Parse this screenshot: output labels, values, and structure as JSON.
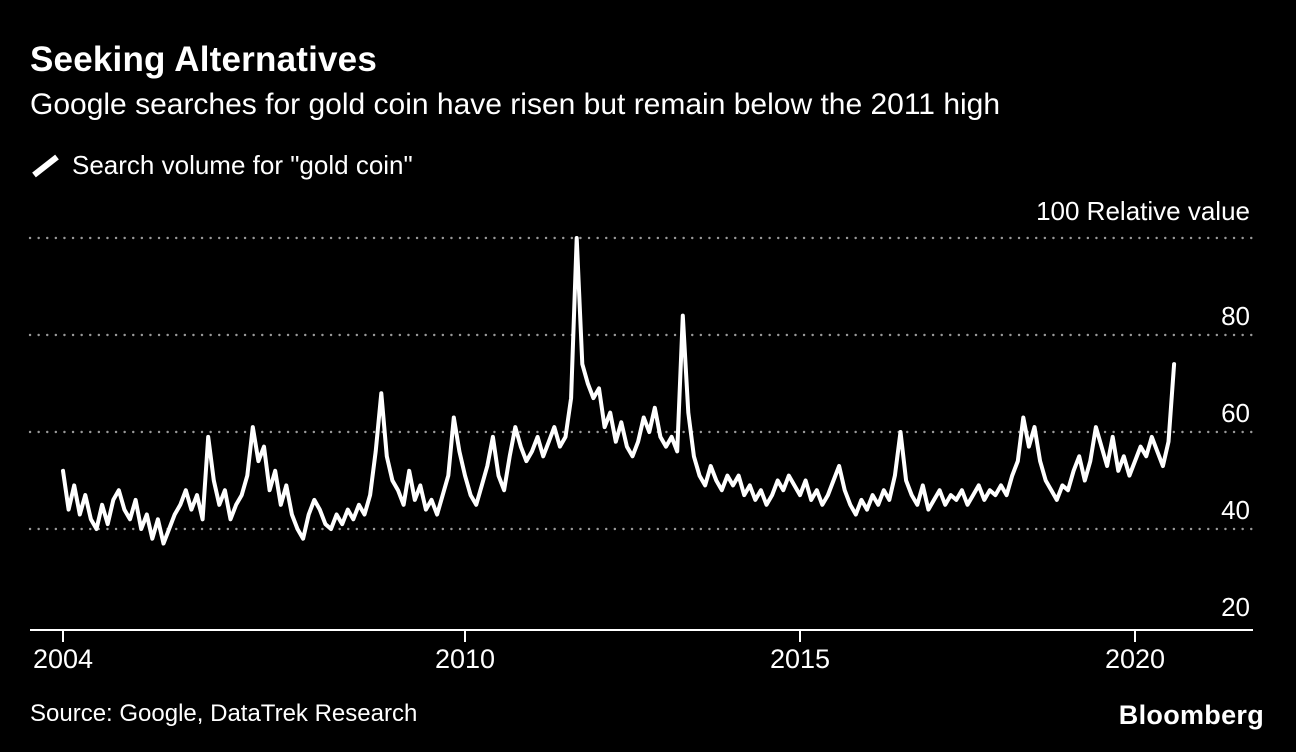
{
  "header": {
    "title": "Seeking Alternatives",
    "subtitle": "Google searches for gold coin have risen but remain below the 2011 high"
  },
  "legend": {
    "label": "Search volume for \"gold coin\""
  },
  "axes": {
    "y_top_label": "100 Relative value",
    "y_tick_labels": [
      {
        "value": 80,
        "label": "80"
      },
      {
        "value": 60,
        "label": "60"
      },
      {
        "value": 40,
        "label": "40"
      },
      {
        "value": 20,
        "label": "20"
      }
    ],
    "x_tick_labels": [
      {
        "year": 2004,
        "label": "2004"
      },
      {
        "year": 2010,
        "label": "2010"
      },
      {
        "year": 2015,
        "label": "2015"
      },
      {
        "year": 2020,
        "label": "2020"
      }
    ],
    "gridline_values": [
      100,
      80,
      60,
      40
    ]
  },
  "footer": {
    "source": "Source: Google, DataTrek Research",
    "brand": "Bloomberg"
  },
  "colors": {
    "background": "#000000",
    "text": "#ffffff",
    "line": "#ffffff",
    "gridline": "#999999",
    "axis": "#ffffff"
  },
  "chart_data": {
    "type": "line",
    "title": "Seeking Alternatives",
    "subtitle": "Google searches for gold coin have risen but remain below the 2011 high",
    "ylabel": "Relative value",
    "ylim": [
      20,
      100
    ],
    "y_ticks": [
      100,
      80,
      60,
      40,
      20
    ],
    "x_ticks": [
      2004,
      2010,
      2015,
      2020
    ],
    "grid": "horizontal-dotted",
    "legend_position": "top-left",
    "series": [
      {
        "name": "Search volume for \"gold coin\"",
        "frequency": "monthly",
        "start": "2004-01",
        "end": "2020-08",
        "values": [
          52,
          44,
          49,
          43,
          47,
          42,
          40,
          45,
          41,
          46,
          48,
          44,
          42,
          46,
          40,
          43,
          38,
          42,
          37,
          40,
          43,
          45,
          48,
          44,
          47,
          42,
          59,
          50,
          45,
          48,
          42,
          45,
          47,
          51,
          61,
          54,
          57,
          48,
          52,
          45,
          49,
          43,
          40,
          38,
          43,
          46,
          44,
          41,
          40,
          43,
          41,
          44,
          42,
          45,
          43,
          47,
          56,
          68,
          55,
          50,
          48,
          45,
          52,
          46,
          49,
          44,
          46,
          43,
          47,
          51,
          63,
          56,
          51,
          47,
          45,
          49,
          53,
          59,
          51,
          48,
          55,
          61,
          57,
          54,
          56,
          59,
          55,
          58,
          61,
          57,
          59,
          67,
          100,
          74,
          70,
          67,
          69,
          61,
          64,
          58,
          62,
          57,
          55,
          58,
          63,
          60,
          65,
          59,
          57,
          59,
          56,
          84,
          64,
          55,
          51,
          49,
          53,
          50,
          48,
          51,
          49,
          51,
          47,
          49,
          46,
          48,
          45,
          47,
          50,
          48,
          51,
          49,
          47,
          50,
          46,
          48,
          45,
          47,
          50,
          53,
          48,
          45,
          43,
          46,
          44,
          47,
          45,
          48,
          46,
          51,
          60,
          50,
          47,
          45,
          49,
          44,
          46,
          48,
          45,
          47,
          46,
          48,
          45,
          47,
          49,
          46,
          48,
          47,
          49,
          47,
          51,
          54,
          63,
          57,
          61,
          54,
          50,
          48,
          46,
          49,
          48,
          52,
          55,
          50,
          54,
          61,
          57,
          53,
          59,
          52,
          55,
          51,
          54,
          57,
          55,
          59,
          56,
          53,
          58,
          74
        ]
      }
    ]
  }
}
